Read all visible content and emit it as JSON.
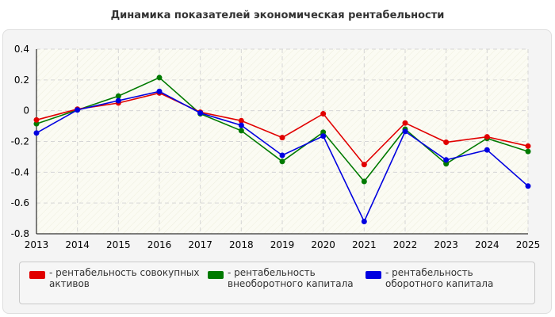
{
  "chart_data": {
    "type": "line",
    "title": "Динамика показателей экономическая рентабельности",
    "x": [
      "2013",
      "2014",
      "2015",
      "2016",
      "2017",
      "2018",
      "2019",
      "2020",
      "2021",
      "2022",
      "2023",
      "2024",
      "2025"
    ],
    "ylim": [
      -0.8,
      0.4
    ],
    "yticks": [
      "0.4",
      "0.2",
      "0",
      "-0.2",
      "-0.4",
      "-0.6",
      "-0.8"
    ],
    "grid": true,
    "legend_position": "bottom",
    "series": [
      {
        "name": "- рентабельность совокупных активов",
        "color": "#e10000",
        "values": [
          -0.06,
          0.01,
          0.05,
          0.115,
          -0.01,
          -0.065,
          -0.175,
          -0.02,
          -0.35,
          -0.08,
          -0.205,
          -0.17,
          -0.23
        ]
      },
      {
        "name": "- рентабельность внеоборотного капитала",
        "color": "#007a00",
        "values": [
          -0.085,
          0.005,
          0.095,
          0.215,
          -0.02,
          -0.13,
          -0.33,
          -0.14,
          -0.46,
          -0.12,
          -0.345,
          -0.18,
          -0.265
        ]
      },
      {
        "name": "- рентабельность оборотного капитала",
        "color": "#0000e0",
        "values": [
          -0.145,
          0.005,
          0.065,
          0.125,
          -0.015,
          -0.095,
          -0.29,
          -0.165,
          -0.72,
          -0.135,
          -0.32,
          -0.255,
          -0.49
        ]
      }
    ]
  }
}
